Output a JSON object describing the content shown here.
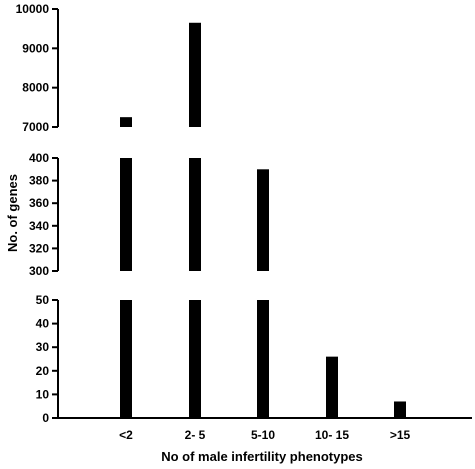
{
  "chart_data": {
    "type": "bar",
    "title": "",
    "xlabel": "No of male infertility phenotypes",
    "ylabel": "No. of genes",
    "categories": [
      "<2",
      "2- 5",
      "5-10",
      "10- 15",
      ">15"
    ],
    "values": [
      7250,
      9650,
      390,
      26,
      7
    ],
    "axis_breaks": true,
    "panels": [
      {
        "ylim": [
          7000,
          10000
        ],
        "ticks": [
          7000,
          8000,
          9000,
          10000
        ]
      },
      {
        "ylim": [
          300,
          400
        ],
        "ticks": [
          300,
          320,
          340,
          360,
          380,
          400
        ]
      },
      {
        "ylim": [
          0,
          50
        ],
        "ticks": [
          0,
          10,
          20,
          30,
          40,
          50
        ]
      }
    ],
    "grid": false,
    "legend": "none"
  }
}
